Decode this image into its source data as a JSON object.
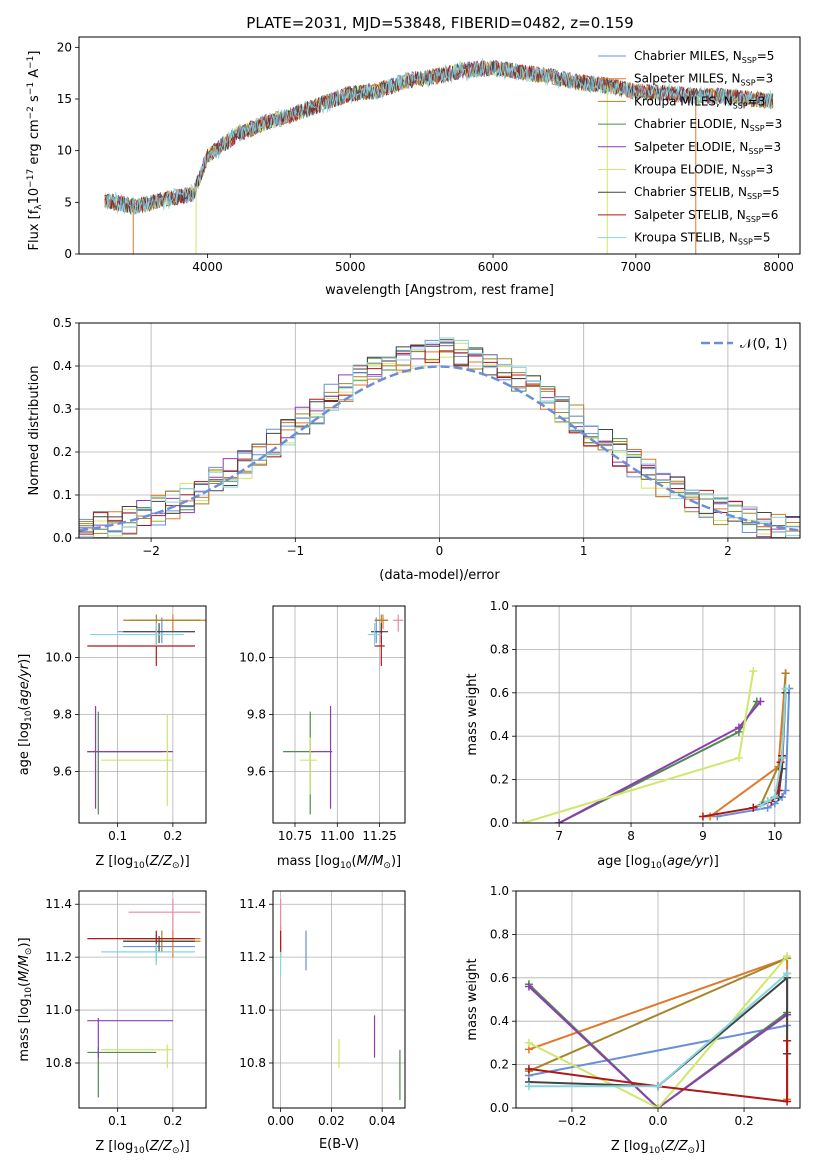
{
  "figure_title": "PLATE=2031, MJD=53848, FIBERID=0482, z=0.159",
  "models": [
    {
      "label": "Chabrier MILES, N",
      "sub": "SSP",
      "n": "=5",
      "color": "#6a8fd8"
    },
    {
      "label": "Salpeter MILES, N",
      "sub": "SSP",
      "n": "=3",
      "color": "#e0782a"
    },
    {
      "label": "Kroupa MILES, N",
      "sub": "SSP",
      "n": "=3",
      "color": "#a8852a"
    },
    {
      "label": "Chabrier ELODIE, N",
      "sub": "SSP",
      "n": "=3",
      "color": "#4f8a4f"
    },
    {
      "label": "Salpeter ELODIE, N",
      "sub": "SSP",
      "n": "=3",
      "color": "#8e3db0"
    },
    {
      "label": "Kroupa ELODIE, N",
      "sub": "SSP",
      "n": "=3",
      "color": "#cde86a"
    },
    {
      "label": "Chabrier STELIB, N",
      "sub": "SSP",
      "n": "=5",
      "color": "#444444"
    },
    {
      "label": "Salpeter STELIB, N",
      "sub": "SSP",
      "n": "=6",
      "color": "#b01818"
    },
    {
      "label": "Kroupa STELIB, N",
      "sub": "SSP",
      "n": "=5",
      "color": "#86d6de"
    }
  ],
  "chart_data": [
    {
      "id": "spectrum",
      "type": "line",
      "title": "PLATE=2031, MJD=53848, FIBERID=0482, z=0.159",
      "xlabel": "wavelength [Angstrom, rest frame]",
      "ylabel": "Flux [f",
      "ylabel_parts": [
        "Flux [f",
        "λ",
        "10",
        "−17",
        " erg cm",
        "−2",
        " s",
        "−1",
        " A",
        "−1",
        "]"
      ],
      "xlim": [
        3100,
        8150
      ],
      "ylim": [
        0,
        21
      ],
      "xticks": [
        4000,
        5000,
        6000,
        7000,
        8000
      ],
      "yticks": [
        0,
        5,
        10,
        15,
        20
      ],
      "continuum": {
        "x": [
          3280,
          3500,
          3700,
          3900,
          4000,
          4200,
          4400,
          4600,
          4800,
          5000,
          5200,
          5400,
          5600,
          5800,
          6000,
          6200,
          6400,
          6600,
          6800,
          7000,
          7200,
          7400,
          7600,
          7800,
          7950
        ],
        "y": [
          5.2,
          4.6,
          5.3,
          5.8,
          9.5,
          11.5,
          12.7,
          13.5,
          14.5,
          15.5,
          15.8,
          16.8,
          17.2,
          17.8,
          18.0,
          17.6,
          17.2,
          16.6,
          16.3,
          15.7,
          15.6,
          15.3,
          15.3,
          15.0,
          14.8
        ]
      },
      "dropouts": [
        {
          "x": 3920,
          "model": 5
        },
        {
          "x": 3480,
          "model": 1
        },
        {
          "x": 6800,
          "model": 5
        },
        {
          "x": 7420,
          "model": 1
        }
      ],
      "legend_position": "upper right"
    },
    {
      "id": "residuals",
      "type": "histogram",
      "xlabel": "(data-model)/error",
      "ylabel": "Normed distribution",
      "xlim": [
        -2.5,
        2.5
      ],
      "ylim": [
        0,
        0.5
      ],
      "xticks": [
        -2,
        -1,
        0,
        1,
        2
      ],
      "xtick_labels": [
        "−2",
        "−1",
        "0",
        "1",
        "2"
      ],
      "yticks": [
        0.0,
        0.1,
        0.2,
        0.3,
        0.4,
        0.5
      ],
      "ytick_labels": [
        "0.0",
        "0.1",
        "0.2",
        "0.3",
        "0.4",
        "0.5"
      ],
      "bin_width": 0.1,
      "reference_curve": {
        "name": "N(0, 1)",
        "label": "𝒩(0, 1)",
        "style": "dashed",
        "color": "#6a8fd8"
      },
      "legend_position": "upper right"
    },
    {
      "id": "age_vs_Z",
      "type": "errorbar",
      "xlabel": "Z [log10(Z/Z⊙)]",
      "ylabel": "age  [log10(age/yr)]",
      "xlim": [
        0.03,
        0.26
      ],
      "ylim": [
        9.42,
        10.18
      ],
      "xticks": [
        0.1,
        0.2
      ],
      "yticks": [
        9.6,
        9.8,
        10.0
      ],
      "points": [
        {
          "model": 0,
          "x": 0.18,
          "y": 10.09,
          "xerr": [
            0.1,
            0.24
          ],
          "yerr": [
            10.05,
            10.14
          ]
        },
        {
          "model": 1,
          "x": 0.2,
          "y": 10.13,
          "xerr": [
            0.12,
            0.26
          ],
          "yerr": [
            10.09,
            10.15
          ]
        },
        {
          "model": 2,
          "x": 0.17,
          "y": 10.13,
          "xerr": [
            0.11,
            0.25
          ],
          "yerr": [
            10.1,
            10.15
          ]
        },
        {
          "model": 3,
          "x": 0.065,
          "y": 9.67,
          "xerr": [
            0.045,
            0.18
          ],
          "yerr": [
            9.45,
            9.81
          ]
        },
        {
          "model": 4,
          "x": 0.06,
          "y": 9.67,
          "xerr": [
            0.045,
            0.2
          ],
          "yerr": [
            9.47,
            9.83
          ]
        },
        {
          "model": 5,
          "x": 0.19,
          "y": 9.64,
          "xerr": [
            0.07,
            0.2
          ],
          "yerr": [
            9.48,
            9.8
          ]
        },
        {
          "model": 6,
          "x": 0.175,
          "y": 10.09,
          "xerr": [
            0.11,
            0.24
          ],
          "yerr": [
            10.05,
            10.12
          ]
        },
        {
          "model": 7,
          "x": 0.17,
          "y": 10.04,
          "xerr": [
            0.045,
            0.24
          ],
          "yerr": [
            9.97,
            10.1
          ]
        },
        {
          "model": 8,
          "x": 0.17,
          "y": 10.08,
          "xerr": [
            0.05,
            0.22
          ],
          "yerr": [
            10.04,
            10.12
          ]
        }
      ]
    },
    {
      "id": "age_vs_mass",
      "type": "errorbar",
      "xlabel": "mass [log10(M/M⊙)]",
      "xlim": [
        10.62,
        11.4
      ],
      "ylim": [
        9.42,
        10.18
      ],
      "xticks": [
        10.75,
        11.0,
        11.25
      ],
      "xtick_labels": [
        "10.75",
        "11.00",
        "11.25"
      ],
      "yticks": [
        9.6,
        9.8,
        10.0
      ],
      "points": [
        {
          "model": 0,
          "x": 11.23,
          "y": 10.09,
          "xerr": [
            11.2,
            11.27
          ],
          "yerr": [
            10.05,
            10.14
          ]
        },
        {
          "model": 1,
          "x": 11.27,
          "y": 10.13,
          "xerr": [
            11.22,
            11.3
          ],
          "yerr": [
            10.1,
            10.15
          ]
        },
        {
          "model": 2,
          "x": 11.26,
          "y": 10.13,
          "xerr": [
            11.22,
            11.3
          ],
          "yerr": [
            10.1,
            10.15
          ]
        },
        {
          "model": 3,
          "x": 10.84,
          "y": 9.67,
          "xerr": [
            10.68,
            10.86
          ],
          "yerr": [
            9.45,
            9.81
          ]
        },
        {
          "model": 4,
          "x": 10.96,
          "y": 9.67,
          "xerr": [
            10.84,
            10.97
          ],
          "yerr": [
            9.47,
            9.83
          ]
        },
        {
          "model": 5,
          "x": 10.84,
          "y": 9.64,
          "xerr": [
            10.78,
            10.88
          ],
          "yerr": [
            9.52,
            9.72
          ]
        },
        {
          "model": 6,
          "x": 11.26,
          "y": 10.09,
          "xerr": [
            11.2,
            11.3
          ],
          "yerr": [
            10.05,
            10.12
          ]
        },
        {
          "model": 7,
          "x": 11.26,
          "y": 10.04,
          "xerr": [
            11.22,
            11.28
          ],
          "yerr": [
            9.97,
            10.1
          ]
        },
        {
          "model": 8,
          "x": 11.22,
          "y": 10.08,
          "xerr": [
            11.18,
            11.26
          ],
          "yerr": [
            10.04,
            10.12
          ]
        },
        {
          "model": 0,
          "x": 11.36,
          "y": 10.13,
          "xerr": [
            11.33,
            11.39
          ],
          "yerr": [
            10.09,
            10.15
          ],
          "pink": true
        }
      ]
    },
    {
      "id": "weight_vs_age",
      "type": "line",
      "xlabel": "age  [log10(age/yr)]",
      "ylabel": "mass weight",
      "xlim": [
        6.4,
        10.35
      ],
      "ylim": [
        0,
        1.0
      ],
      "xticks": [
        7,
        8,
        9,
        10
      ],
      "yticks": [
        0.0,
        0.2,
        0.4,
        0.6,
        0.8,
        1.0
      ],
      "series": [
        {
          "model": 0,
          "x": [
            9.2,
            9.9,
            10.0,
            10.1,
            10.15,
            10.2
          ],
          "y": [
            0.03,
            0.07,
            0.09,
            0.12,
            0.15,
            0.62
          ]
        },
        {
          "model": 1,
          "x": [
            9.1,
            10.05,
            10.15
          ],
          "y": [
            0.03,
            0.26,
            0.69
          ]
        },
        {
          "model": 2,
          "x": [
            9.8,
            10.1,
            10.15
          ],
          "y": [
            0.08,
            0.3,
            0.69
          ]
        },
        {
          "model": 3,
          "x": [
            7.0,
            9.5,
            9.75
          ],
          "y": [
            0.0,
            0.42,
            0.56
          ]
        },
        {
          "model": 4,
          "x": [
            7.0,
            9.5,
            9.8
          ],
          "y": [
            0.0,
            0.44,
            0.56
          ]
        },
        {
          "model": 5,
          "x": [
            6.5,
            9.5,
            9.7
          ],
          "y": [
            0.0,
            0.3,
            0.7
          ]
        },
        {
          "model": 6,
          "x": [
            9.7,
            9.9,
            10.05,
            10.1,
            10.15
          ],
          "y": [
            0.07,
            0.1,
            0.12,
            0.25,
            0.6
          ]
        },
        {
          "model": 7,
          "x": [
            9.0,
            9.7,
            9.95,
            10.05,
            10.08,
            10.1
          ],
          "y": [
            0.03,
            0.07,
            0.1,
            0.15,
            0.28,
            0.31
          ]
        },
        {
          "model": 8,
          "x": [
            9.8,
            9.9,
            10.0,
            10.1,
            10.15
          ],
          "y": [
            0.08,
            0.1,
            0.12,
            0.3,
            0.62
          ]
        }
      ]
    },
    {
      "id": "mass_vs_Z",
      "type": "errorbar",
      "xlabel": "Z [log10(Z/Z⊙)]",
      "ylabel": "mass [log10(M/M⊙)]",
      "xlim": [
        0.03,
        0.26
      ],
      "ylim": [
        10.63,
        11.45
      ],
      "xticks": [
        0.1,
        0.2
      ],
      "yticks": [
        10.8,
        11.0,
        11.2,
        11.4
      ],
      "points": [
        {
          "model": 0,
          "x": 0.17,
          "y": 11.24,
          "xerr": [
            0.11,
            0.24
          ],
          "yerr": [
            11.18,
            11.29
          ]
        },
        {
          "model": 1,
          "x": 0.2,
          "y": 11.27,
          "xerr": [
            0.11,
            0.25
          ],
          "yerr": [
            11.2,
            11.3
          ]
        },
        {
          "model": 2,
          "x": 0.18,
          "y": 11.26,
          "xerr": [
            0.11,
            0.25
          ],
          "yerr": [
            11.22,
            11.3
          ]
        },
        {
          "model": 3,
          "x": 0.065,
          "y": 10.84,
          "xerr": [
            0.045,
            0.17
          ],
          "yerr": [
            10.67,
            10.86
          ]
        },
        {
          "model": 4,
          "x": 0.065,
          "y": 10.96,
          "xerr": [
            0.045,
            0.2
          ],
          "yerr": [
            10.82,
            10.97
          ]
        },
        {
          "model": 5,
          "x": 0.19,
          "y": 10.85,
          "xerr": [
            0.07,
            0.2
          ],
          "yerr": [
            10.78,
            10.87
          ]
        },
        {
          "model": 6,
          "x": 0.175,
          "y": 11.26,
          "xerr": [
            0.11,
            0.24
          ],
          "yerr": [
            11.22,
            11.28
          ]
        },
        {
          "model": 7,
          "x": 0.17,
          "y": 11.27,
          "xerr": [
            0.045,
            0.24
          ],
          "yerr": [
            11.22,
            11.3
          ]
        },
        {
          "model": 8,
          "x": 0.17,
          "y": 11.22,
          "xerr": [
            0.07,
            0.24
          ],
          "yerr": [
            11.17,
            11.25
          ]
        },
        {
          "model": 0,
          "x": 0.2,
          "y": 11.37,
          "xerr": [
            0.12,
            0.25
          ],
          "yerr": [
            11.3,
            11.42
          ],
          "pink": true
        }
      ]
    },
    {
      "id": "mass_vs_ebv",
      "type": "errorbar",
      "xlabel": "E(B-V)",
      "xlim": [
        -0.003,
        0.049
      ],
      "ylim": [
        10.63,
        11.45
      ],
      "xticks": [
        0.0,
        0.02,
        0.04
      ],
      "xtick_labels": [
        "0.00",
        "0.02",
        "0.04"
      ],
      "yticks": [
        10.8,
        11.0,
        11.2,
        11.4
      ],
      "points": [
        {
          "model": 0,
          "x": 0.01,
          "y": 11.2,
          "yerr": [
            11.15,
            11.3
          ]
        },
        {
          "model": 1,
          "x": 0.0,
          "y": 11.27,
          "yerr": [
            11.22,
            11.32
          ]
        },
        {
          "model": 5,
          "x": 0.023,
          "y": 10.85,
          "yerr": [
            10.78,
            10.89
          ]
        },
        {
          "model": 4,
          "x": 0.037,
          "y": 10.9,
          "yerr": [
            10.82,
            10.98
          ]
        },
        {
          "model": 3,
          "x": 0.047,
          "y": 10.76,
          "yerr": [
            10.66,
            10.85
          ]
        },
        {
          "model": 7,
          "x": 0.0,
          "y": 11.25,
          "yerr": [
            11.2,
            11.3
          ]
        },
        {
          "model": 8,
          "x": 0.0,
          "y": 11.18,
          "yerr": [
            11.13,
            11.22
          ]
        },
        {
          "model": 0,
          "x": 0.0,
          "y": 11.35,
          "yerr": [
            11.3,
            11.42
          ],
          "pink": true
        }
      ]
    },
    {
      "id": "weight_vs_Z",
      "type": "line",
      "xlabel": "Z [log10(Z/Z⊙)]",
      "ylabel": "mass weight",
      "xlim": [
        -0.33,
        0.33
      ],
      "ylim": [
        0,
        1.0
      ],
      "xticks": [
        -0.2,
        0.0,
        0.2
      ],
      "xtick_labels": [
        "−0.2",
        "0.0",
        "0.2"
      ],
      "yticks": [
        0.0,
        0.2,
        0.4,
        0.6,
        0.8,
        1.0
      ],
      "series": [
        {
          "model": 0,
          "x": [
            -0.3,
            0.3,
            0.3
          ],
          "y": [
            0.15,
            0.38,
            0.62
          ]
        },
        {
          "model": 1,
          "x": [
            -0.3,
            0.3,
            0.3
          ],
          "y": [
            0.27,
            0.69,
            0.04
          ]
        },
        {
          "model": 2,
          "x": [
            -0.3,
            0.3
          ],
          "y": [
            0.17,
            0.69
          ]
        },
        {
          "model": 3,
          "x": [
            -0.3,
            0.0,
            0.3
          ],
          "y": [
            0.57,
            0.0,
            0.44
          ]
        },
        {
          "model": 4,
          "x": [
            -0.3,
            0.0,
            0.3
          ],
          "y": [
            0.56,
            0.0,
            0.43
          ]
        },
        {
          "model": 5,
          "x": [
            -0.3,
            0.0,
            0.3
          ],
          "y": [
            0.3,
            0.0,
            0.7
          ]
        },
        {
          "model": 6,
          "x": [
            -0.3,
            0.0,
            0.3,
            0.3
          ],
          "y": [
            0.12,
            0.1,
            0.6,
            0.25
          ]
        },
        {
          "model": 7,
          "x": [
            -0.3,
            0.0,
            0.3,
            0.3
          ],
          "y": [
            0.18,
            0.1,
            0.03,
            0.31
          ]
        },
        {
          "model": 8,
          "x": [
            -0.3,
            0.0,
            0.3
          ],
          "y": [
            0.1,
            0.1,
            0.62
          ]
        }
      ]
    }
  ]
}
